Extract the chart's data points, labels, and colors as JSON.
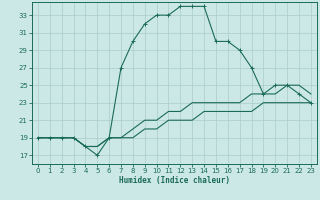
{
  "xlabel": "Humidex (Indice chaleur)",
  "bg_color": "#cce8e6",
  "line_color": "#1a6b5a",
  "grid_color": "#aaccca",
  "xlim": [
    -0.5,
    23.5
  ],
  "ylim": [
    16.0,
    34.5
  ],
  "xticks": [
    0,
    1,
    2,
    3,
    4,
    5,
    6,
    7,
    8,
    9,
    10,
    11,
    12,
    13,
    14,
    15,
    16,
    17,
    18,
    19,
    20,
    21,
    22,
    23
  ],
  "yticks": [
    17,
    19,
    21,
    23,
    25,
    27,
    29,
    31,
    33
  ],
  "curve1_x": [
    0,
    1,
    2,
    3,
    4,
    5,
    6,
    7,
    8,
    9,
    10,
    11,
    12,
    13,
    14,
    15,
    16,
    17,
    18,
    19,
    20,
    21,
    22,
    23
  ],
  "curve1_y": [
    19,
    19,
    19,
    19,
    18,
    17,
    19,
    27,
    30,
    32,
    33,
    33,
    34,
    34,
    34,
    30,
    30,
    29,
    27,
    24,
    25,
    25,
    24,
    23
  ],
  "curve2_x": [
    0,
    2,
    3,
    4,
    5,
    6,
    7,
    8,
    9,
    10,
    11,
    12,
    13,
    14,
    15,
    16,
    17,
    18,
    19,
    20,
    21,
    22,
    23
  ],
  "curve2_y": [
    19,
    19,
    19,
    18,
    18,
    19,
    19,
    20,
    21,
    21,
    22,
    22,
    23,
    23,
    23,
    23,
    23,
    24,
    24,
    24,
    25,
    25,
    24
  ],
  "curve3_x": [
    0,
    2,
    3,
    4,
    5,
    6,
    7,
    8,
    9,
    10,
    11,
    12,
    13,
    14,
    15,
    16,
    17,
    18,
    19,
    20,
    21,
    22,
    23
  ],
  "curve3_y": [
    19,
    19,
    19,
    18,
    18,
    19,
    19,
    19,
    20,
    20,
    21,
    21,
    21,
    22,
    22,
    22,
    22,
    22,
    23,
    23,
    23,
    23,
    23
  ]
}
